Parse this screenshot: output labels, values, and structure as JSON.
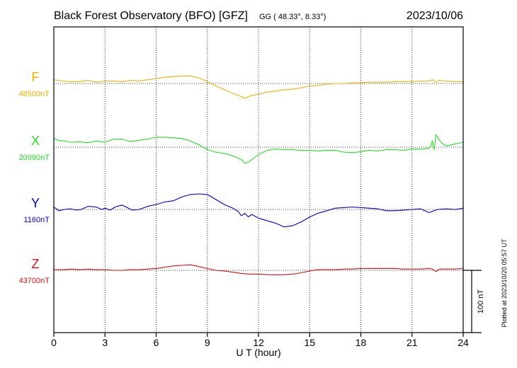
{
  "header": {
    "title": "Black Forest Observatory (BFO)  [GFZ]",
    "coords": "GG ( 48.33°,   8.33°)",
    "date": "2023/10/06"
  },
  "plotted_note": "Plotted at 2023/10/20 05:57 UT",
  "chart_data": {
    "type": "line",
    "xlabel": "U T (hour)",
    "xlim": [
      0,
      24
    ],
    "x_ticks": [
      0,
      3,
      6,
      9,
      12,
      15,
      18,
      21,
      24
    ],
    "scale_bar": {
      "label": "100 nT",
      "nT": 100
    },
    "series": [
      {
        "name": "F",
        "baseline_label": "48500nT",
        "baseline_nT": 48500,
        "color": "#f0b000",
        "x": [
          0,
          0.5,
          1,
          1.5,
          2,
          2.5,
          3,
          3.5,
          4,
          4.5,
          5,
          5.5,
          6,
          6.5,
          7,
          7.5,
          8,
          8.5,
          9,
          9.5,
          10,
          10.5,
          11,
          11.2,
          11.5,
          12,
          12.5,
          13,
          13.5,
          14,
          14.5,
          15,
          15.5,
          16,
          16.5,
          17,
          17.5,
          18,
          18.5,
          19,
          19.5,
          20,
          20.5,
          21,
          21.5,
          22,
          22.2,
          22.4,
          22.6,
          23,
          23.5,
          24
        ],
        "offset_nT": [
          6,
          4,
          3,
          3,
          5,
          2,
          4,
          4,
          3,
          5,
          4,
          6,
          8,
          10,
          11,
          12,
          12,
          9,
          3,
          -4,
          -10,
          -16,
          -21,
          -24,
          -20,
          -17,
          -14,
          -12,
          -10,
          -9,
          -7,
          -4,
          -3,
          -1,
          0,
          0,
          1,
          1,
          2,
          2,
          2,
          3,
          3,
          3,
          4,
          4,
          6,
          2,
          5,
          4,
          3,
          3
        ]
      },
      {
        "name": "X",
        "baseline_label": "20990nT",
        "baseline_nT": 20990,
        "color": "#22dd22",
        "x": [
          0,
          0.3,
          0.6,
          1,
          1.5,
          2,
          2.5,
          3,
          3.5,
          4,
          4.5,
          5,
          5.5,
          6,
          6.5,
          7,
          7.5,
          8,
          8.5,
          9,
          9.5,
          10,
          10.5,
          11,
          11.2,
          11.4,
          11.6,
          12,
          12.5,
          13,
          13.5,
          14,
          14.5,
          15,
          15.5,
          16,
          16.5,
          17,
          17.5,
          18,
          18.5,
          19,
          19.5,
          20,
          20.5,
          21,
          21.5,
          22,
          22.1,
          22.2,
          22.3,
          22.4,
          22.5,
          22.7,
          23,
          23.5,
          24
        ],
        "offset_nT": [
          14,
          11,
          10,
          8,
          9,
          7,
          10,
          8,
          13,
          13,
          9,
          11,
          13,
          16,
          16,
          15,
          14,
          10,
          4,
          -4,
          -8,
          -10,
          -14,
          -20,
          -26,
          -24,
          -20,
          -12,
          -5,
          -3,
          -4,
          -4,
          -5,
          -5,
          -6,
          -5,
          -5,
          -8,
          -9,
          -7,
          -5,
          -6,
          -4,
          -4,
          -5,
          -3,
          -3,
          -2,
          2,
          10,
          -4,
          20,
          16,
          8,
          2,
          5,
          8
        ]
      },
      {
        "name": "Y",
        "baseline_label": "1160nT",
        "baseline_nT": 1160,
        "color": "#0000cc",
        "x": [
          0,
          0.3,
          0.6,
          1,
          1.3,
          1.6,
          2,
          2.5,
          2.8,
          3,
          3.3,
          3.6,
          4,
          4.3,
          4.6,
          5,
          5.5,
          6,
          6.5,
          7,
          7.5,
          8,
          8.5,
          9,
          9.5,
          10,
          10.5,
          10.8,
          11,
          11.2,
          11.4,
          11.6,
          12,
          12.5,
          13,
          13.5,
          14,
          14.5,
          15,
          15.5,
          16,
          16.5,
          17,
          17.5,
          18,
          18.5,
          19,
          19.5,
          20,
          20.5,
          21,
          21.5,
          22,
          22.5,
          23,
          23.5,
          24
        ],
        "offset_nT": [
          4,
          -2,
          0,
          1,
          -1,
          0,
          5,
          4,
          0,
          2,
          -1,
          4,
          7,
          3,
          -1,
          0,
          5,
          8,
          12,
          14,
          20,
          24,
          25,
          24,
          16,
          8,
          2,
          -3,
          -10,
          -6,
          -12,
          -8,
          -14,
          -18,
          -22,
          -28,
          -26,
          -20,
          -12,
          -6,
          -2,
          2,
          3,
          4,
          3,
          2,
          1,
          -2,
          -2,
          -1,
          0,
          1,
          -5,
          0,
          1,
          0,
          2
        ]
      },
      {
        "name": "Z",
        "baseline_label": "43700nT",
        "baseline_nT": 43700,
        "color": "#dd1111",
        "x": [
          0,
          0.5,
          1,
          1.5,
          2,
          2.5,
          3,
          3.5,
          4,
          4.5,
          5,
          5.5,
          6,
          6.5,
          7,
          7.5,
          8,
          8.5,
          9,
          9.5,
          10,
          10.5,
          11,
          11.5,
          12,
          12.5,
          13,
          13.5,
          14,
          14.5,
          15,
          15.5,
          16,
          16.5,
          17,
          17.5,
          18,
          18.5,
          19,
          19.5,
          20,
          20.5,
          21,
          21.5,
          22,
          22.2,
          22.4,
          22.6,
          23,
          23.5,
          24
        ],
        "offset_nT": [
          1,
          1,
          2,
          1,
          2,
          1,
          1,
          0,
          0,
          1,
          1,
          2,
          3,
          5,
          7,
          8,
          9,
          6,
          3,
          0,
          -1,
          -3,
          -5,
          -6,
          -6,
          -7,
          -7,
          -7,
          -6,
          -4,
          -1,
          1,
          1,
          1,
          2,
          2,
          3,
          3,
          3,
          3,
          3,
          2,
          2,
          2,
          3,
          2,
          -2,
          2,
          2,
          2,
          3
        ]
      }
    ]
  }
}
